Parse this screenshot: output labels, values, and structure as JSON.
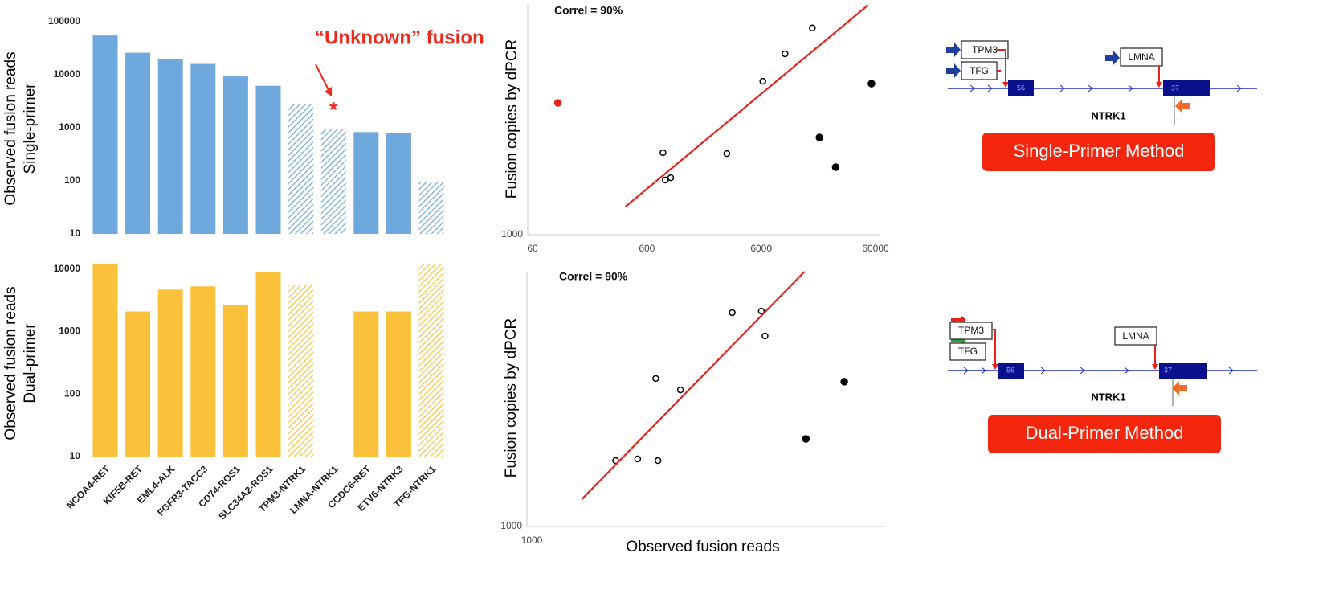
{
  "chart_data": [
    {
      "type": "bar",
      "ylabel": [
        "Observed fusion reads",
        "Single-primer"
      ],
      "annotations": [
        "“Unknown” fusion",
        "*"
      ],
      "values": [
        55000,
        26000,
        19500,
        16000,
        9300,
        6200,
        2850,
        930,
        830,
        800,
        97
      ],
      "hatched": [
        false,
        false,
        false,
        false,
        false,
        false,
        true,
        true,
        false,
        false,
        true
      ],
      "color": "#6fa8dc",
      "log": true,
      "ylim": [
        10,
        100000
      ],
      "yticks": [
        10,
        100,
        1000,
        10000,
        100000
      ]
    },
    {
      "type": "bar",
      "ylabel": [
        "Observed fusion reads",
        "Dual-primer"
      ],
      "categories": [
        "NCOA4-RET",
        "KIF5B-RET",
        "EML4-ALK",
        "FGFR3-TACC3",
        "CD74-ROS1",
        "SLC34A2-ROS1",
        "TPM3-NTRK1",
        "LMNA-NTRK1",
        "CCDC6-RET",
        "ETV6-NTRK3",
        "TFG-NTRK1"
      ],
      "values": [
        12300,
        2100,
        4700,
        5300,
        2700,
        9000,
        5500,
        null,
        2100,
        2100,
        12300
      ],
      "hatched": [
        false,
        false,
        false,
        false,
        false,
        false,
        true,
        false,
        false,
        false,
        true
      ],
      "color": "#fcc13b",
      "log": true,
      "ylim": [
        10,
        16000
      ],
      "yticks": [
        10,
        100,
        1000,
        10000
      ]
    },
    {
      "type": "scatter",
      "ylabel": "Fusion copies by dPCR",
      "annotation": "Correl = 90%",
      "log": true,
      "xlim": [
        60,
        60000
      ],
      "ylim": [
        1000,
        100000
      ],
      "xticks": [
        60,
        600,
        6000,
        60000
      ],
      "yticks": [
        1000
      ],
      "series": [
        {
          "marker": "open",
          "color": "#000000",
          "x": [
            16800,
            9700,
            6200,
            830,
            3000,
            870,
            970
          ],
          "values": [
            62000,
            37000,
            21400,
            5140,
            5050,
            2980,
            3120
          ]
        },
        {
          "marker": "filled",
          "color": "#000000",
          "x": [
            55300,
            19400,
            26900
          ],
          "values": [
            20400,
            6970,
            3850
          ]
        },
        {
          "marker": "filled",
          "color": "#e8221b",
          "x": [
            100
          ],
          "values": [
            13900
          ]
        },
        {
          "marker": "line",
          "color": "#e8221b",
          "x": [
            390,
            51700
          ],
          "values": [
            1750,
            98000
          ]
        }
      ]
    },
    {
      "type": "scatter",
      "xlabel": "Observed fusion reads",
      "ylabel": "Fusion copies by dPCR",
      "annotation": "Correl = 90%",
      "log": true,
      "xlim": [
        1000,
        100000
      ],
      "ylim": [
        1000,
        100000
      ],
      "xticks": [
        1000
      ],
      "yticks": [
        1000
      ],
      "series": [
        {
          "marker": "open",
          "color": "#000000",
          "x": [
            13800,
            20200,
            21200,
            5070,
            7000,
            3000,
            4000,
            5220
          ],
          "values": [
            47700,
            49000,
            31300,
            14500,
            11800,
            3290,
            3390,
            3290
          ]
        },
        {
          "marker": "filled",
          "color": "#000000",
          "x": [
            59800,
            36200
          ],
          "values": [
            13700,
            4870
          ]
        },
        {
          "marker": "line",
          "color": "#e8221b",
          "x": [
            1930,
            35500
          ],
          "values": [
            1640,
            100000
          ]
        }
      ]
    }
  ],
  "diagrams": [
    {
      "sources": [
        "TPM3",
        "TFG"
      ],
      "partner": "LMNA",
      "exons": [
        "56",
        "37"
      ],
      "gene": "NTRK1",
      "method": "Single-Primer Method"
    },
    {
      "sources": [
        "TPM3",
        "TFG"
      ],
      "partner": "LMNA",
      "exons": [
        "56",
        "37"
      ],
      "gene": "NTRK1",
      "method": "Dual-Primer Method"
    }
  ]
}
